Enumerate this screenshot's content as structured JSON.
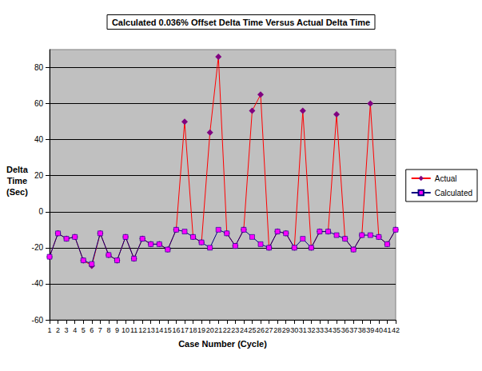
{
  "chart_data": {
    "type": "line",
    "title": "Calculated 0.036% Offset Delta Time Versus Actual Delta Time",
    "x_label": "Case Number (Cycle)",
    "y_label": "Delta Time (Sec)",
    "categories": [
      "1",
      "2",
      "3",
      "4",
      "5",
      "6",
      "7",
      "8",
      "9",
      "10",
      "11",
      "12",
      "13",
      "14",
      "15",
      "16",
      "17",
      "18",
      "19",
      "20",
      "21",
      "22",
      "23",
      "24",
      "25",
      "26",
      "27",
      "28",
      "29",
      "30",
      "31",
      "32",
      "33",
      "34",
      "35",
      "36",
      "37",
      "38",
      "39",
      "40",
      "41",
      "42"
    ],
    "series": [
      {
        "name": "Actual",
        "color": "#ff0000",
        "marker": "diamond",
        "values": [
          -25,
          -12,
          -15,
          -14,
          -27,
          -30,
          -12,
          -24,
          -27,
          -14,
          -26,
          -15,
          -18,
          -18,
          -21,
          -10,
          50,
          -14,
          -17,
          44,
          86,
          -12,
          -19,
          -10,
          56,
          65,
          -20,
          -11,
          -12,
          -20,
          56,
          -20,
          -11,
          -11,
          54,
          -15,
          -21,
          -13,
          60,
          -14,
          -18,
          -10
        ]
      },
      {
        "name": "Calculated",
        "color": "#000080",
        "marker": "rect",
        "values": [
          -25,
          -12,
          -15,
          -14,
          -27,
          -29,
          -12,
          -24,
          -27,
          -14,
          -26,
          -15,
          -18,
          -18,
          -21,
          -10,
          -11,
          -14,
          -17,
          -20,
          -10,
          -12,
          -19,
          -10,
          -14,
          -18,
          -20,
          -11,
          -12,
          -20,
          -15,
          -20,
          -11,
          -11,
          -13,
          -15,
          -21,
          -13,
          -13,
          -14,
          -18,
          -10
        ]
      }
    ],
    "ylim": [
      -60,
      90
    ],
    "yticks": [
      -60,
      -40,
      -20,
      0,
      20,
      40,
      60,
      80
    ],
    "grid": true,
    "legend": "right"
  }
}
